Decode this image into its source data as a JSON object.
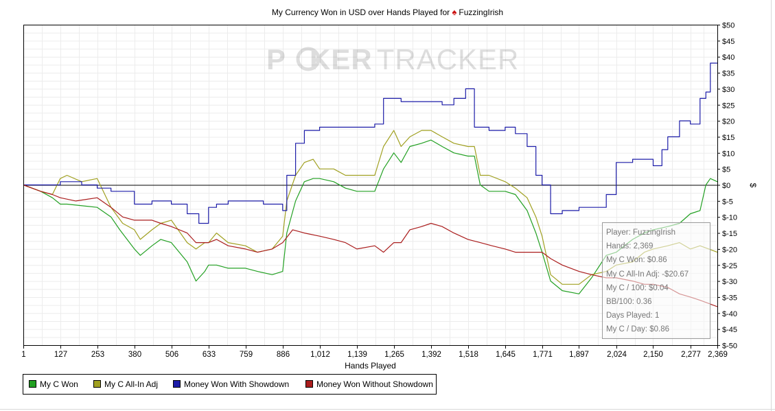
{
  "chart_data": {
    "type": "line",
    "title": "My Currency Won in USD over Hands Played for",
    "player_name": "FuzzingIrish",
    "watermark": {
      "left": "P",
      "mid": "KER",
      "right": "TRACKER"
    },
    "xlabel": "Hands Played",
    "ylabel": "$",
    "xlim": [
      1,
      2369
    ],
    "ylim": [
      -50,
      50
    ],
    "x_ticks": [
      "1",
      "127",
      "253",
      "380",
      "506",
      "633",
      "759",
      "886",
      "1,012",
      "1,139",
      "1,265",
      "1,392",
      "1,518",
      "1,645",
      "1,771",
      "1,897",
      "2,024",
      "2,150",
      "2,277",
      "2,369"
    ],
    "x_tick_values": [
      1,
      127,
      253,
      380,
      506,
      633,
      759,
      886,
      1012,
      1139,
      1265,
      1392,
      1518,
      1645,
      1771,
      1897,
      2024,
      2150,
      2277,
      2369
    ],
    "y_ticks": [
      "$50",
      "$45",
      "$40",
      "$35",
      "$30",
      "$25",
      "$20",
      "$15",
      "$10",
      "$5",
      "$0",
      "$-5",
      "$-10",
      "$-15",
      "$-20",
      "$-25",
      "$-30",
      "$-35",
      "$-40",
      "$-45",
      "$-50"
    ],
    "y_tick_values": [
      50,
      45,
      40,
      35,
      30,
      25,
      20,
      15,
      10,
      5,
      0,
      -5,
      -10,
      -15,
      -20,
      -25,
      -30,
      -35,
      -40,
      -45,
      -50
    ],
    "grid": true,
    "legend_position": "bottom-left",
    "series": [
      {
        "name": "My C Won",
        "color": "#22a022",
        "step": false,
        "points": [
          [
            1,
            0
          ],
          [
            60,
            -2
          ],
          [
            100,
            -4
          ],
          [
            127,
            -6
          ],
          [
            150,
            -6
          ],
          [
            253,
            -7
          ],
          [
            300,
            -10
          ],
          [
            330,
            -14
          ],
          [
            380,
            -20
          ],
          [
            400,
            -22
          ],
          [
            440,
            -19
          ],
          [
            470,
            -17
          ],
          [
            506,
            -18
          ],
          [
            560,
            -24
          ],
          [
            590,
            -30
          ],
          [
            620,
            -27
          ],
          [
            633,
            -25
          ],
          [
            660,
            -25
          ],
          [
            700,
            -26
          ],
          [
            759,
            -26
          ],
          [
            800,
            -27
          ],
          [
            850,
            -28
          ],
          [
            886,
            -27
          ],
          [
            900,
            -15
          ],
          [
            930,
            -5
          ],
          [
            960,
            1
          ],
          [
            990,
            2
          ],
          [
            1012,
            2
          ],
          [
            1060,
            1
          ],
          [
            1100,
            -1
          ],
          [
            1139,
            -2
          ],
          [
            1200,
            -2
          ],
          [
            1230,
            5
          ],
          [
            1265,
            10
          ],
          [
            1290,
            7
          ],
          [
            1320,
            12
          ],
          [
            1360,
            13
          ],
          [
            1392,
            14
          ],
          [
            1430,
            12
          ],
          [
            1470,
            10
          ],
          [
            1518,
            9
          ],
          [
            1540,
            9
          ],
          [
            1560,
            0
          ],
          [
            1590,
            -2
          ],
          [
            1645,
            -2
          ],
          [
            1680,
            -3
          ],
          [
            1720,
            -8
          ],
          [
            1750,
            -15
          ],
          [
            1771,
            -21
          ],
          [
            1800,
            -30
          ],
          [
            1840,
            -33
          ],
          [
            1897,
            -34
          ],
          [
            1940,
            -29
          ],
          [
            1990,
            -22
          ],
          [
            2024,
            -21
          ],
          [
            2080,
            -17
          ],
          [
            2120,
            -15
          ],
          [
            2150,
            -14
          ],
          [
            2200,
            -13
          ],
          [
            2240,
            -12
          ],
          [
            2277,
            -9
          ],
          [
            2310,
            -8
          ],
          [
            2330,
            0
          ],
          [
            2345,
            2
          ],
          [
            2369,
            1
          ]
        ]
      },
      {
        "name": "My C All-In Adj",
        "color": "#a0a020",
        "step": false,
        "points": [
          [
            1,
            0
          ],
          [
            60,
            -2
          ],
          [
            100,
            -3
          ],
          [
            127,
            2
          ],
          [
            150,
            3
          ],
          [
            200,
            1
          ],
          [
            253,
            2
          ],
          [
            300,
            -7
          ],
          [
            340,
            -12
          ],
          [
            380,
            -14
          ],
          [
            400,
            -17
          ],
          [
            440,
            -14
          ],
          [
            470,
            -12
          ],
          [
            506,
            -11
          ],
          [
            560,
            -18
          ],
          [
            590,
            -20
          ],
          [
            620,
            -18
          ],
          [
            633,
            -18
          ],
          [
            660,
            -15
          ],
          [
            700,
            -18
          ],
          [
            759,
            -19
          ],
          [
            800,
            -21
          ],
          [
            850,
            -20
          ],
          [
            886,
            -16
          ],
          [
            900,
            -5
          ],
          [
            930,
            3
          ],
          [
            960,
            7
          ],
          [
            990,
            8
          ],
          [
            1012,
            5
          ],
          [
            1060,
            5
          ],
          [
            1100,
            3
          ],
          [
            1139,
            3
          ],
          [
            1200,
            3
          ],
          [
            1230,
            12
          ],
          [
            1265,
            17
          ],
          [
            1290,
            12
          ],
          [
            1320,
            15
          ],
          [
            1360,
            17
          ],
          [
            1392,
            17
          ],
          [
            1430,
            15
          ],
          [
            1470,
            13
          ],
          [
            1518,
            12
          ],
          [
            1540,
            12
          ],
          [
            1560,
            3
          ],
          [
            1590,
            3
          ],
          [
            1645,
            1
          ],
          [
            1680,
            -1
          ],
          [
            1720,
            -4
          ],
          [
            1750,
            -10
          ],
          [
            1771,
            -16
          ],
          [
            1800,
            -28
          ],
          [
            1840,
            -31
          ],
          [
            1897,
            -31
          ],
          [
            1940,
            -28
          ],
          [
            1990,
            -27
          ],
          [
            2024,
            -25
          ],
          [
            2080,
            -24
          ],
          [
            2120,
            -21
          ],
          [
            2150,
            -20
          ],
          [
            2200,
            -19
          ],
          [
            2240,
            -18
          ],
          [
            2277,
            -20
          ],
          [
            2310,
            -19
          ],
          [
            2340,
            -20
          ],
          [
            2369,
            -21
          ]
        ]
      },
      {
        "name": "Money Won With Showdown",
        "color": "#1c1ca8",
        "step": true,
        "points": [
          [
            1,
            0
          ],
          [
            100,
            0
          ],
          [
            127,
            1
          ],
          [
            200,
            0
          ],
          [
            253,
            -1
          ],
          [
            300,
            -2
          ],
          [
            380,
            -6
          ],
          [
            440,
            -5
          ],
          [
            506,
            -6
          ],
          [
            560,
            -9
          ],
          [
            600,
            -12
          ],
          [
            633,
            -7
          ],
          [
            660,
            -6
          ],
          [
            700,
            -5
          ],
          [
            759,
            -5
          ],
          [
            820,
            -6
          ],
          [
            886,
            -8
          ],
          [
            900,
            3
          ],
          [
            930,
            13
          ],
          [
            960,
            17
          ],
          [
            1012,
            18
          ],
          [
            1060,
            18
          ],
          [
            1139,
            18
          ],
          [
            1200,
            19
          ],
          [
            1230,
            27
          ],
          [
            1265,
            27
          ],
          [
            1290,
            26
          ],
          [
            1320,
            26
          ],
          [
            1392,
            26
          ],
          [
            1430,
            25
          ],
          [
            1470,
            27
          ],
          [
            1510,
            30
          ],
          [
            1518,
            30
          ],
          [
            1540,
            18
          ],
          [
            1590,
            17
          ],
          [
            1645,
            18
          ],
          [
            1680,
            16
          ],
          [
            1720,
            12
          ],
          [
            1750,
            3
          ],
          [
            1771,
            0
          ],
          [
            1800,
            -9
          ],
          [
            1840,
            -8
          ],
          [
            1897,
            -7
          ],
          [
            1940,
            -7
          ],
          [
            1990,
            -3
          ],
          [
            2024,
            7
          ],
          [
            2080,
            8
          ],
          [
            2120,
            8
          ],
          [
            2150,
            6
          ],
          [
            2180,
            11
          ],
          [
            2200,
            15
          ],
          [
            2240,
            20
          ],
          [
            2277,
            19
          ],
          [
            2310,
            27
          ],
          [
            2330,
            29
          ],
          [
            2345,
            38
          ],
          [
            2369,
            38
          ]
        ]
      },
      {
        "name": "Money Won Without Showdown",
        "color": "#aa1c1c",
        "step": false,
        "points": [
          [
            1,
            0
          ],
          [
            60,
            -2
          ],
          [
            100,
            -3
          ],
          [
            127,
            -4
          ],
          [
            180,
            -5
          ],
          [
            253,
            -4
          ],
          [
            300,
            -7
          ],
          [
            340,
            -10
          ],
          [
            380,
            -11
          ],
          [
            440,
            -11
          ],
          [
            470,
            -12
          ],
          [
            506,
            -13
          ],
          [
            560,
            -15
          ],
          [
            590,
            -18
          ],
          [
            633,
            -18
          ],
          [
            660,
            -17
          ],
          [
            700,
            -19
          ],
          [
            759,
            -20
          ],
          [
            800,
            -21
          ],
          [
            850,
            -20
          ],
          [
            886,
            -18
          ],
          [
            920,
            -14
          ],
          [
            960,
            -15
          ],
          [
            1012,
            -16
          ],
          [
            1060,
            -17
          ],
          [
            1100,
            -18
          ],
          [
            1139,
            -20
          ],
          [
            1200,
            -19
          ],
          [
            1230,
            -21
          ],
          [
            1265,
            -18
          ],
          [
            1290,
            -18
          ],
          [
            1320,
            -14
          ],
          [
            1360,
            -13
          ],
          [
            1392,
            -12
          ],
          [
            1430,
            -13
          ],
          [
            1470,
            -15
          ],
          [
            1518,
            -17
          ],
          [
            1560,
            -18
          ],
          [
            1600,
            -19
          ],
          [
            1645,
            -20
          ],
          [
            1680,
            -21
          ],
          [
            1720,
            -21
          ],
          [
            1771,
            -21
          ],
          [
            1800,
            -23
          ],
          [
            1840,
            -25
          ],
          [
            1897,
            -27
          ],
          [
            1940,
            -28
          ],
          [
            1990,
            -29
          ],
          [
            2024,
            -29
          ],
          [
            2080,
            -30
          ],
          [
            2120,
            -31
          ],
          [
            2150,
            -31
          ],
          [
            2200,
            -32
          ],
          [
            2240,
            -34
          ],
          [
            2277,
            -35
          ],
          [
            2310,
            -36
          ],
          [
            2340,
            -37
          ],
          [
            2369,
            -38
          ]
        ]
      }
    ]
  },
  "tooltip": {
    "lines": [
      "Player: FuzzingIrish",
      "Hands: 2,369",
      "My C Won: $0.86",
      "My C All-In Adj: -$20.67",
      "My C / 100: $0.04",
      "BB/100: 0.36",
      "Days Played: 1",
      "My C / Day: $0.86"
    ]
  },
  "legend": {
    "items": [
      {
        "label": "My C Won",
        "color": "#22a022"
      },
      {
        "label": "My C All-In Adj",
        "color": "#a0a020"
      },
      {
        "label": "Money Won With Showdown",
        "color": "#1c1ca8"
      },
      {
        "label": "Money Won Without Showdown",
        "color": "#aa1c1c"
      }
    ]
  }
}
